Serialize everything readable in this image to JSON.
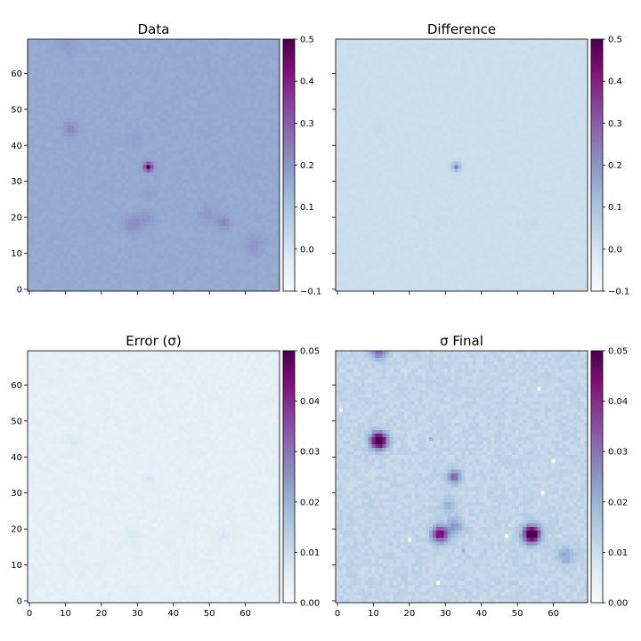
{
  "chart_data": [
    {
      "type": "heatmap",
      "title": "Data",
      "colormap": "BuPu",
      "grid_size": 70,
      "xlim": [
        0,
        70
      ],
      "ylim": [
        0,
        70
      ],
      "xticks": [
        0,
        10,
        20,
        30,
        40,
        50,
        60
      ],
      "yticks": [
        0,
        10,
        20,
        30,
        40,
        50,
        60
      ],
      "xticklabels_visible": false,
      "yticklabels_visible": true,
      "background": 0.16,
      "colorbar": {
        "min": -0.1,
        "max": 0.5,
        "ticks": [
          -0.1,
          0.0,
          0.1,
          0.2,
          0.3,
          0.4,
          0.5
        ],
        "tick_labels": [
          "−0.1",
          "0.0",
          "0.1",
          "0.2",
          "0.3",
          "0.4",
          "0.5"
        ]
      },
      "sources": [
        {
          "x": 33.5,
          "y": 34.5,
          "amp": 0.34,
          "sigma": 0.8
        },
        {
          "x": 12,
          "y": 45,
          "amp": 0.07,
          "sigma": 1.4
        },
        {
          "x": 29,
          "y": 18.5,
          "amp": 0.06,
          "sigma": 1.6
        },
        {
          "x": 33,
          "y": 20,
          "amp": 0.04,
          "sigma": 1.6
        },
        {
          "x": 54.5,
          "y": 19,
          "amp": 0.07,
          "sigma": 1.2
        },
        {
          "x": 50,
          "y": 21.5,
          "amp": 0.03,
          "sigma": 2.0
        },
        {
          "x": 63,
          "y": 13,
          "amp": 0.04,
          "sigma": 1.8
        },
        {
          "x": 29.5,
          "y": 42,
          "amp": 0.02,
          "sigma": 1.5
        },
        {
          "x": 33.5,
          "y": 27,
          "amp": 0.02,
          "sigma": 1.3
        },
        {
          "x": 11,
          "y": 68.5,
          "amp": 0.03,
          "sigma": 2.0
        }
      ],
      "noise": 0.006
    },
    {
      "type": "heatmap",
      "title": "Difference",
      "colormap": "BuPu",
      "grid_size": 70,
      "xlim": [
        0,
        70
      ],
      "ylim": [
        0,
        70
      ],
      "xticks": [
        0,
        10,
        20,
        30,
        40,
        50,
        60
      ],
      "yticks": [
        0,
        10,
        20,
        30,
        40,
        50,
        60
      ],
      "xticklabels_visible": false,
      "yticklabels_visible": false,
      "background": 0.02,
      "colorbar": {
        "min": -0.1,
        "max": 0.5,
        "ticks": [
          -0.1,
          0.0,
          0.1,
          0.2,
          0.3,
          0.4,
          0.5
        ],
        "tick_labels": [
          "−0.1",
          "0.0",
          "0.1",
          "0.2",
          "0.3",
          "0.4",
          "0.5"
        ]
      },
      "sources": [
        {
          "x": 33.5,
          "y": 34.5,
          "amp": 0.22,
          "sigma": 0.8
        },
        {
          "x": 12,
          "y": 45,
          "amp": 0.015,
          "sigma": 1.0
        },
        {
          "x": 54.5,
          "y": 18.5,
          "amp": 0.02,
          "sigma": 1.0
        },
        {
          "x": 29,
          "y": 19,
          "amp": 0.01,
          "sigma": 1.0
        }
      ],
      "noise": 0.004
    },
    {
      "type": "heatmap",
      "title": "Error (σ)",
      "colormap": "BuPu",
      "grid_size": 70,
      "xlim": [
        0,
        70
      ],
      "ylim": [
        0,
        70
      ],
      "xticks": [
        0,
        10,
        20,
        30,
        40,
        50,
        60
      ],
      "yticks": [
        0,
        10,
        20,
        30,
        40,
        50,
        60
      ],
      "xticklabels_visible": true,
      "yticklabels_visible": true,
      "background": 0.005,
      "colorbar": {
        "min": 0.0,
        "max": 0.05,
        "ticks": [
          0.0,
          0.01,
          0.02,
          0.03,
          0.04,
          0.05
        ],
        "tick_labels": [
          "0.00",
          "0.01",
          "0.02",
          "0.03",
          "0.04",
          "0.05"
        ]
      },
      "sources": [
        {
          "x": 33.5,
          "y": 34.5,
          "amp": 0.004,
          "sigma": 0.8
        },
        {
          "x": 12,
          "y": 45,
          "amp": 0.002,
          "sigma": 1.5
        },
        {
          "x": 29,
          "y": 18.5,
          "amp": 0.002,
          "sigma": 1.5
        },
        {
          "x": 54.5,
          "y": 19,
          "amp": 0.002,
          "sigma": 1.5
        }
      ],
      "noise": 0.0008
    },
    {
      "type": "heatmap",
      "title": "σ Final",
      "colormap": "BuPu",
      "grid_size": 70,
      "xlim": [
        0,
        70
      ],
      "ylim": [
        0,
        70
      ],
      "xticks": [
        0,
        10,
        20,
        30,
        40,
        50,
        60
      ],
      "yticks": [
        0,
        10,
        20,
        30,
        40,
        50,
        60
      ],
      "xticklabels_visible": true,
      "yticklabels_visible": false,
      "background": 0.012,
      "colorbar": {
        "min": 0.0,
        "max": 0.05,
        "ticks": [
          0.0,
          0.01,
          0.02,
          0.03,
          0.04,
          0.05
        ],
        "tick_labels": [
          "0.00",
          "0.01",
          "0.02",
          "0.03",
          "0.04",
          "0.05"
        ]
      },
      "sources": [
        {
          "x": 12,
          "y": 45,
          "amp": 0.05,
          "sigma": 1.6
        },
        {
          "x": 54.5,
          "y": 19,
          "amp": 0.05,
          "sigma": 1.6
        },
        {
          "x": 29,
          "y": 19,
          "amp": 0.035,
          "sigma": 1.5
        },
        {
          "x": 33,
          "y": 35,
          "amp": 0.022,
          "sigma": 1.3
        },
        {
          "x": 33,
          "y": 21,
          "amp": 0.012,
          "sigma": 1.8
        },
        {
          "x": 31,
          "y": 27,
          "amp": 0.008,
          "sigma": 1.5
        },
        {
          "x": 12,
          "y": 70,
          "amp": 0.02,
          "sigma": 1.6
        },
        {
          "x": 64,
          "y": 13,
          "amp": 0.01,
          "sigma": 1.8
        }
      ],
      "noise": 0.0018,
      "hot_pixels": [
        {
          "x": 56.5,
          "y": 59.5,
          "v": 0.0
        },
        {
          "x": 60.5,
          "y": 39.5,
          "v": 0.0
        },
        {
          "x": 26.5,
          "y": 45.5,
          "v": 0.02
        },
        {
          "x": 57.5,
          "y": 30.5,
          "v": 0.0
        },
        {
          "x": 20.5,
          "y": 17.5,
          "v": 0.0
        },
        {
          "x": 47.5,
          "y": 18.5,
          "v": 0.0
        },
        {
          "x": 35.5,
          "y": 14.5,
          "v": 0.02
        },
        {
          "x": 28.5,
          "y": 5.5,
          "v": 0.0
        },
        {
          "x": 1.5,
          "y": 53.5,
          "v": 0.0
        }
      ]
    }
  ]
}
